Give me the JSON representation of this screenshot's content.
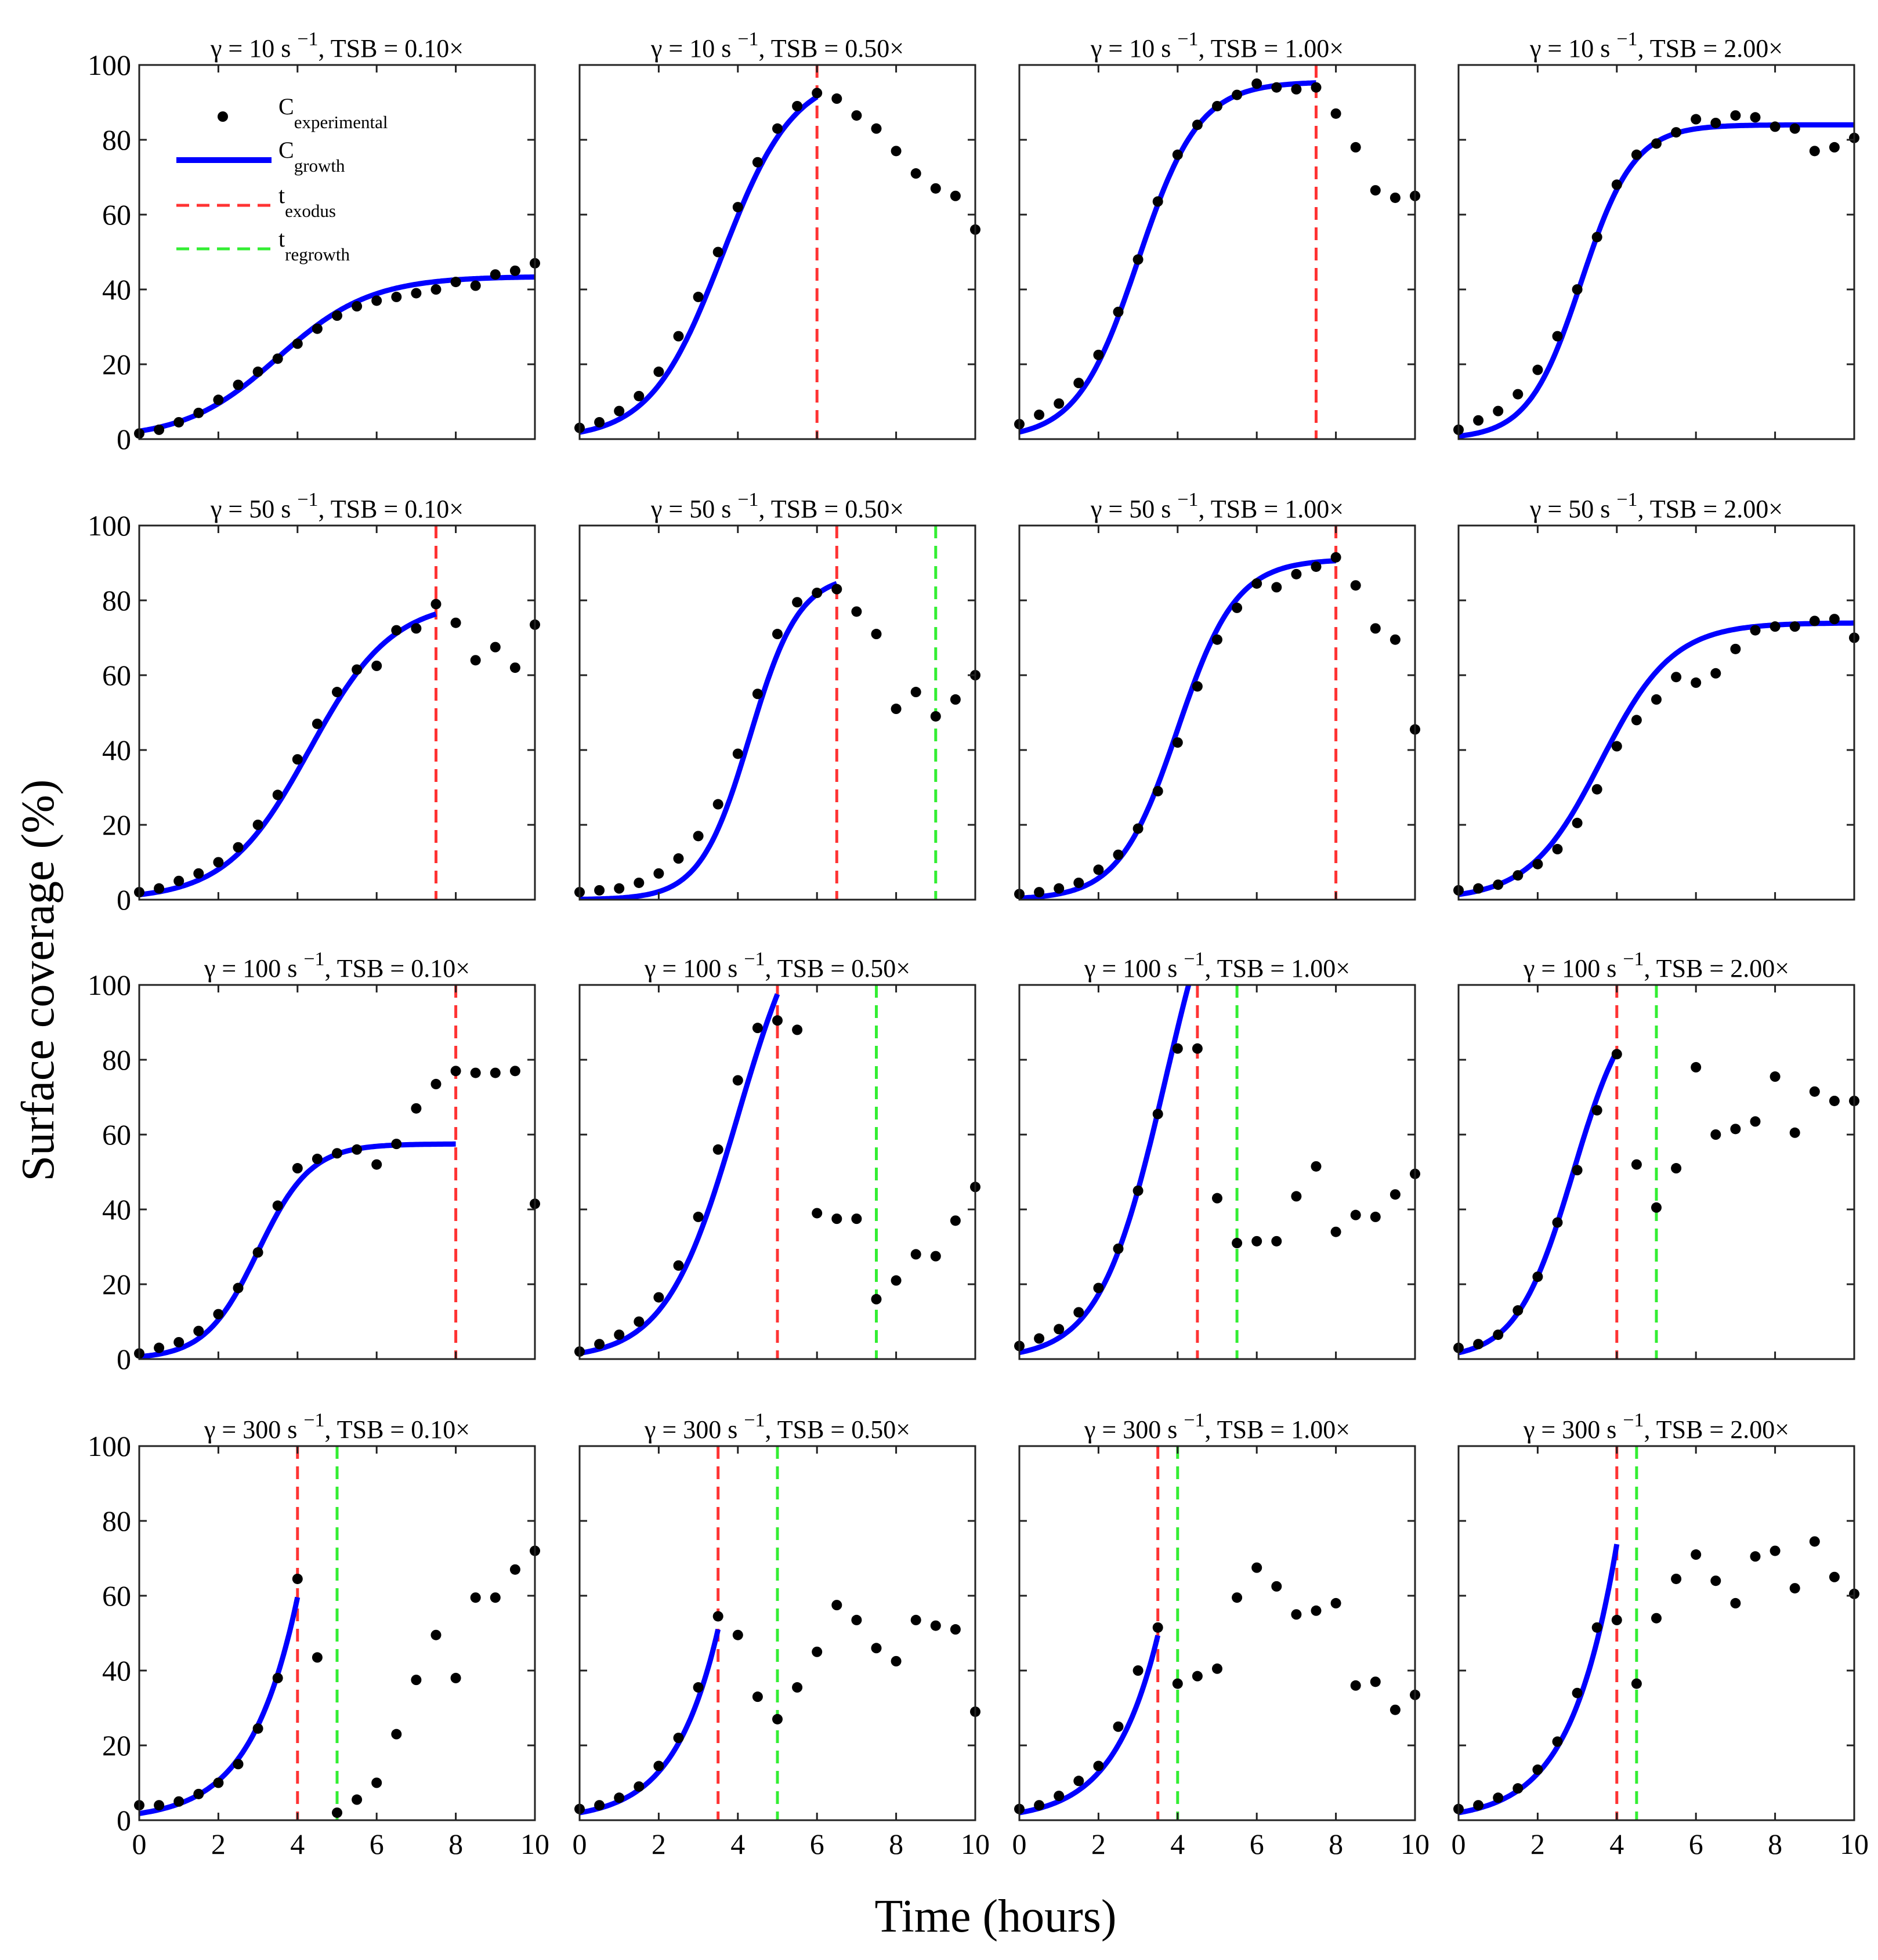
{
  "chart_data": {
    "type": "scatter",
    "xlabel": "Time (hours)",
    "ylabel": "Surface coverage (%)",
    "xlim": [
      0,
      10
    ],
    "ylim": [
      0,
      100
    ],
    "xticks": [
      0,
      2,
      4,
      6,
      8,
      10
    ],
    "yticks": [
      0,
      20,
      40,
      60,
      80,
      100
    ],
    "grid": false,
    "legend": {
      "placement": "top-left of first panel",
      "entries": [
        {
          "main": "C",
          "sub": "experimental",
          "style": "dot"
        },
        {
          "main": "C",
          "sub": "growth",
          "style": "line"
        },
        {
          "main": "t",
          "sub": "exodus",
          "style": "dash-red"
        },
        {
          "main": "t",
          "sub": "regrowth",
          "style": "dash-green"
        }
      ]
    },
    "colors": {
      "points": "#000000",
      "growth": "#0000ff",
      "exodus": "#ff3333",
      "regrowth": "#33ee33"
    },
    "x": [
      0,
      0.5,
      1,
      1.5,
      2,
      2.5,
      3,
      3.5,
      4,
      4.5,
      5,
      5.5,
      6,
      6.5,
      7,
      7.5,
      8,
      8.5,
      9,
      9.5,
      10
    ],
    "growth_model": "logistic C(t) = K / (1 + exp(-r (t - t_mid))), drawn from t=0 to t_end",
    "panels": [
      {
        "title": {
          "pre": "γ = 10 s",
          "sup": "−1",
          "post": ", TSB = 0.10×"
        },
        "t_exodus": null,
        "t_regrowth": null,
        "growth": {
          "K": 43.5,
          "r": 0.85,
          "t_mid": 3.5,
          "t_end": 10
        },
        "y": [
          1.5,
          2.5,
          4.5,
          7,
          10.5,
          14.5,
          18,
          21.5,
          25.5,
          29.5,
          33,
          35.5,
          37,
          38,
          39,
          40,
          42,
          41,
          44,
          45,
          47
        ]
      },
      {
        "title": {
          "pre": "γ = 10 s",
          "sup": "−1",
          "post": ", TSB = 0.50×"
        },
        "t_exodus": 6,
        "t_regrowth": null,
        "growth": {
          "K": 98,
          "r": 1.1,
          "t_mid": 3.6,
          "t_end": 6
        },
        "y": [
          3,
          4.5,
          7.5,
          11.5,
          18,
          27.5,
          38,
          50,
          62,
          74,
          83,
          89,
          92.5,
          91,
          86.5,
          83,
          77,
          71,
          67,
          65,
          56
        ]
      },
      {
        "title": {
          "pre": "γ = 10 s",
          "sup": "−1",
          "post": ", TSB = 1.00×"
        },
        "t_exodus": 7.5,
        "t_regrowth": null,
        "growth": {
          "K": 95.5,
          "r": 1.3,
          "t_mid": 3.0,
          "t_end": 7.5
        },
        "y": [
          4,
          6.5,
          9.5,
          15,
          22.5,
          34,
          48,
          63.5,
          76,
          84,
          89,
          92,
          95,
          94,
          93.5,
          94,
          87,
          78,
          66.5,
          64.5,
          65
        ]
      },
      {
        "title": {
          "pre": "γ = 10 s",
          "sup": "−1",
          "post": ", TSB = 2.00×"
        },
        "t_exodus": null,
        "t_regrowth": null,
        "growth": {
          "K": 84,
          "r": 1.5,
          "t_mid": 3.1,
          "t_end": 10
        },
        "y": [
          2.5,
          5,
          7.5,
          12,
          18.5,
          27.5,
          40,
          54,
          68,
          76,
          79,
          82,
          85.5,
          84.5,
          86.5,
          86,
          83.5,
          83,
          77,
          78,
          80.5
        ]
      },
      {
        "title": {
          "pre": "γ = 50 s",
          "sup": "−1",
          "post": ", TSB = 0.10×"
        },
        "t_exodus": 7.5,
        "t_regrowth": null,
        "growth": {
          "K": 80,
          "r": 0.95,
          "t_mid": 4.3,
          "t_end": 7.5
        },
        "y": [
          2,
          3,
          5,
          7,
          10,
          14,
          20,
          28,
          37.5,
          47,
          55.5,
          61.5,
          62.5,
          72,
          72.5,
          79,
          74,
          64,
          67.5,
          62,
          73.5
        ]
      },
      {
        "title": {
          "pre": "γ = 50 s",
          "sup": "−1",
          "post": ", TSB = 0.50×"
        },
        "t_exodus": 6.5,
        "t_regrowth": 9,
        "growth": {
          "K": 87,
          "r": 1.6,
          "t_mid": 4.3,
          "t_end": 6.5
        },
        "y": [
          2,
          2.5,
          3,
          4.5,
          7,
          11,
          17,
          25.5,
          39,
          55,
          71,
          79.5,
          82,
          83,
          77,
          71,
          51,
          55.5,
          49,
          53.5,
          60
        ]
      },
      {
        "title": {
          "pre": "γ = 50 s",
          "sup": "−1",
          "post": ", TSB = 1.00×"
        },
        "t_exodus": 8,
        "t_regrowth": null,
        "growth": {
          "K": 91,
          "r": 1.35,
          "t_mid": 4.0,
          "t_end": 8
        },
        "y": [
          1.5,
          2,
          3,
          4.5,
          8,
          12,
          19,
          29,
          42,
          57,
          69.5,
          78,
          84.5,
          83.5,
          87,
          89,
          91.5,
          84,
          72.5,
          69.5,
          45.5
        ]
      },
      {
        "title": {
          "pre": "γ = 50 s",
          "sup": "−1",
          "post": ", TSB = 2.00×"
        },
        "t_exodus": null,
        "t_regrowth": null,
        "growth": {
          "K": 74,
          "r": 1.1,
          "t_mid": 3.6,
          "t_end": 10
        },
        "y": [
          2.5,
          3,
          4,
          6.5,
          9.5,
          13.5,
          20.5,
          29.5,
          41,
          48,
          53.5,
          59.5,
          58,
          60.5,
          67,
          72,
          73,
          73,
          74.5,
          75,
          70
        ]
      },
      {
        "title": {
          "pre": "γ = 100 s",
          "sup": "−1",
          "post": ", TSB = 0.10×"
        },
        "t_exodus": 8,
        "t_regrowth": null,
        "growth": {
          "K": 57.5,
          "r": 1.5,
          "t_mid": 3.0,
          "t_end": 8
        },
        "y": [
          1.5,
          3,
          4.5,
          7.5,
          12,
          19,
          28.5,
          41,
          51,
          53.5,
          55,
          56,
          52,
          57.5,
          67,
          73.5,
          77,
          76.5,
          76.5,
          77,
          41.5
        ]
      },
      {
        "title": {
          "pre": "γ = 100 s",
          "sup": "−1",
          "post": ", TSB = 0.50×"
        },
        "t_exodus": 5,
        "t_regrowth": 7.5,
        "growth": {
          "K": 130,
          "r": 1.1,
          "t_mid": 4.0,
          "t_end": 5
        },
        "y": [
          2,
          4,
          6.5,
          10,
          16.5,
          25,
          38,
          56,
          74.5,
          88.5,
          90.5,
          88,
          39,
          37.5,
          37.5,
          16,
          21,
          28,
          27.5,
          37,
          46
        ]
      },
      {
        "title": {
          "pre": "γ = 100 s",
          "sup": "−1",
          "post": ", TSB = 1.00×"
        },
        "t_exodus": 4.5,
        "t_regrowth": 5.5,
        "growth": {
          "K": 150,
          "r": 1.2,
          "t_mid": 3.7,
          "t_end": 4.5
        },
        "y": [
          3.5,
          5.5,
          8,
          12.5,
          19,
          29.5,
          45,
          65.5,
          83,
          83,
          43,
          31,
          31.5,
          31.5,
          43.5,
          51.5,
          34,
          38.5,
          38,
          44,
          49.5
        ]
      },
      {
        "title": {
          "pre": "γ = 100 s",
          "sup": "−1",
          "post": ", TSB = 2.00×"
        },
        "t_exodus": 4,
        "t_regrowth": 5,
        "growth": {
          "K": 100,
          "r": 1.4,
          "t_mid": 2.9,
          "t_end": 4
        },
        "y": [
          3,
          4,
          6.5,
          13,
          22,
          36.5,
          50.5,
          66.5,
          81.5,
          52,
          40.5,
          51,
          78,
          60,
          61.5,
          63.5,
          75.5,
          60.5,
          71.5,
          69,
          69
        ]
      },
      {
        "title": {
          "pre": "γ = 300 s",
          "sup": "−1",
          "post": ", TSB = 0.10×"
        },
        "t_exodus": 4,
        "t_regrowth": 5,
        "growth": {
          "K": 1000,
          "r": 0.89,
          "t_mid": 7.1,
          "t_end": 4
        },
        "y": [
          4,
          4,
          5,
          7,
          10,
          15,
          24.5,
          38,
          64.5,
          43.5,
          2,
          5.5,
          10,
          23,
          37.5,
          49.5,
          38,
          59.5,
          59.5,
          67,
          72
        ]
      },
      {
        "title": {
          "pre": "γ = 300 s",
          "sup": "−1",
          "post": ", TSB = 0.50×"
        },
        "t_exodus": 3.5,
        "t_regrowth": 5,
        "growth": {
          "K": 1000,
          "r": 0.94,
          "t_mid": 6.61,
          "t_end": 3.5
        },
        "y": [
          3,
          4,
          6,
          9,
          14.5,
          22,
          35.5,
          54.5,
          49.5,
          33,
          27,
          35.5,
          45,
          57.5,
          53.5,
          46,
          42.5,
          53.5,
          52,
          51,
          29
        ]
      },
      {
        "title": {
          "pre": "γ = 300 s",
          "sup": "−1",
          "post": ", TSB = 1.00×"
        },
        "t_exodus": 3.5,
        "t_regrowth": 4,
        "growth": {
          "K": 1000,
          "r": 0.93,
          "t_mid": 6.68,
          "t_end": 3.5
        },
        "y": [
          3,
          4,
          6.5,
          10.5,
          14.5,
          25,
          40,
          51.5,
          36.5,
          38.5,
          40.5,
          59.5,
          67.5,
          62.5,
          55,
          56,
          58,
          36,
          37,
          29.5,
          33.5
        ]
      },
      {
        "title": {
          "pre": "γ = 300 s",
          "sup": "−1",
          "post": ", TSB = 2.00×"
        },
        "t_exodus": 4,
        "t_regrowth": 4.5,
        "growth": {
          "K": 1000,
          "r": 0.92,
          "t_mid": 6.75,
          "t_end": 4
        },
        "y": [
          3,
          4,
          6,
          8.5,
          13.5,
          21,
          34,
          51.5,
          53.5,
          36.5,
          54,
          64.5,
          71,
          64,
          58,
          70.5,
          72,
          62,
          74.5,
          65,
          60.5
        ]
      }
    ]
  }
}
